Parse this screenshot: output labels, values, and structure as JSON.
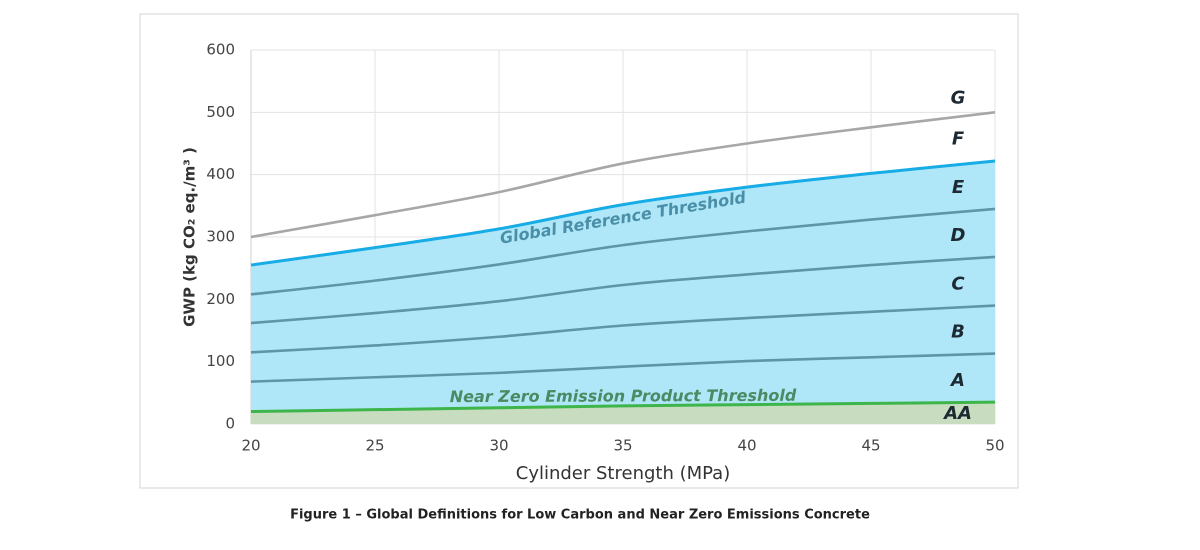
{
  "chart_data": {
    "type": "line",
    "caption": "Figure 1 – Global Definitions for Low Carbon and Near Zero Emissions Concrete",
    "x_label": "Cylinder Strength (MPa)",
    "y_label": "GWP (kg CO₂ eq./m³ )",
    "x": [
      20,
      25,
      30,
      35,
      40,
      45,
      50
    ],
    "series": [
      {
        "color": "#a7a7aa",
        "values": [
          300,
          335,
          372,
          418,
          450,
          476,
          500
        ]
      },
      {
        "name": "Global Reference Threshold",
        "color": "#17ace6",
        "fill": "#b0e7f8",
        "values": [
          255,
          283,
          313,
          352,
          380,
          402,
          422
        ]
      },
      {
        "color": "#5d96a8",
        "values": [
          208,
          230,
          256,
          287,
          309,
          328,
          345
        ]
      },
      {
        "color": "#5d96a8",
        "values": [
          162,
          178,
          197,
          223,
          240,
          255,
          268
        ]
      },
      {
        "color": "#5d96a8",
        "values": [
          115,
          126,
          140,
          158,
          170,
          180,
          190
        ]
      },
      {
        "color": "#5d96a8",
        "values": [
          68,
          75,
          82,
          92,
          101,
          107,
          113
        ]
      },
      {
        "name": "Near Zero Emission Product Threshold",
        "color": "#3db54b",
        "fill": "#c8dcc0",
        "values": [
          20,
          23,
          26,
          29,
          31,
          33,
          35
        ]
      }
    ],
    "zone_labels": [
      "G",
      "F",
      "E",
      "D",
      "C",
      "B",
      "A",
      "AA"
    ],
    "xlim": [
      20,
      50
    ],
    "xticks": [
      20,
      25,
      30,
      35,
      40,
      45,
      50
    ],
    "ylim": [
      0,
      600
    ],
    "yticks": [
      0,
      100,
      200,
      300,
      400,
      500,
      600
    ],
    "grid": true
  }
}
